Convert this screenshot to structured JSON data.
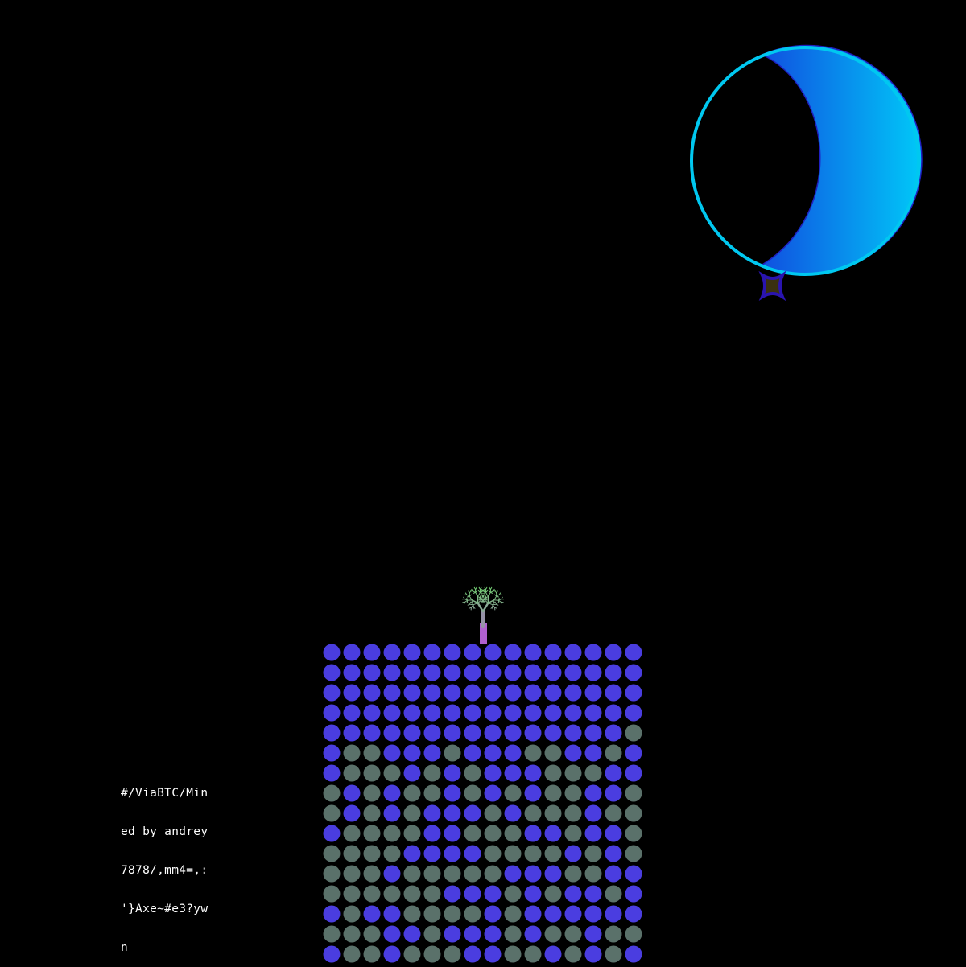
{
  "inscription": {
    "lines": [
      "#/ViaBTC/Min",
      "ed by andrey",
      "7878/,mm4=,:",
      "'}Axe~#e3?yw",
      "n"
    ]
  },
  "colors": {
    "background": "#000000",
    "dot_on": "#4a3de0",
    "dot_off": "#5a716a",
    "moon_outline": "#00c8f0",
    "moon_gradient_start": "#1050e0",
    "moon_gradient_end": "#00c8f8",
    "tree_top": "#6ee06a",
    "tree_bottom": "#b060d0",
    "star_outline": "#2a14b0",
    "star_fill": "#3a3010"
  },
  "icons": {
    "moon": "crescent-moon-icon",
    "star": "four-point-star-icon",
    "tree": "fractal-tree-icon"
  },
  "grid": {
    "legend": "B = blue dot, G = gray dot",
    "rows": [
      "BBBBBBBBBBBBBBBB",
      "BBBBBBBBBBBBBBBB",
      "BBBBBBBBBBBBBBBB",
      "BBBBBBBBBBBBBBBB",
      "BBBBBBBBBBBBBBBG",
      "BGGBBBGBBBGGBBGB",
      "BGGGBGBGBBBGGGBB",
      "GBGBGGBGBGBGGBBG",
      "GBGBGBBBGBGGGBGG",
      "BGGGGBBGGGBBGBBG",
      "GGGGBBBBGGGGBGBG",
      "GGGBGGGGGBBBGGBB",
      "GGGGGGBBBGBGBBGB",
      "BGBBGGGGBGBBBBBB",
      "GGGBBGBBBGBGGBGG",
      "BGGBGGGBBGGBGBGB"
    ]
  }
}
